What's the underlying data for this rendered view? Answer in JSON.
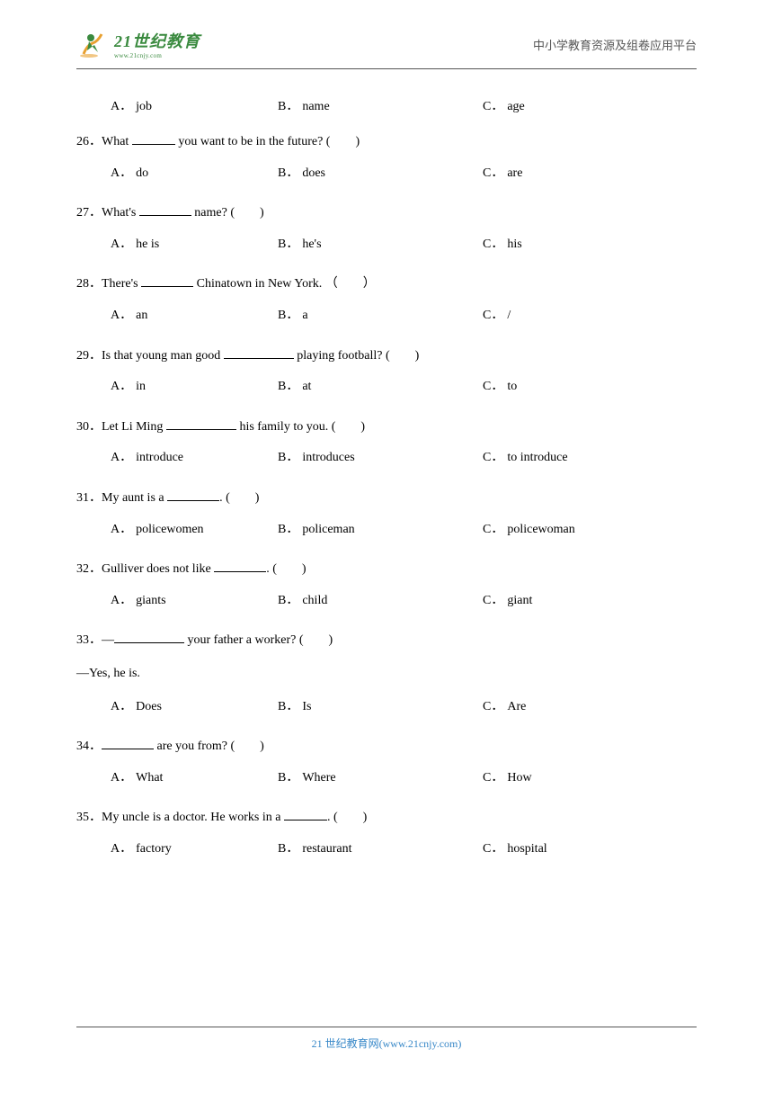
{
  "header": {
    "logo_main": "21世纪教育",
    "logo_sub": "www.21cnjy.com",
    "right_text": "中小学教育资源及组卷应用平台"
  },
  "first_options": {
    "a": "job",
    "b": "name",
    "c": "age"
  },
  "questions": [
    {
      "num": "26",
      "before": "．What ",
      "blank_class": "blank-sm",
      "after": " you want to be in the future? (　　)",
      "a": "do",
      "b": "does",
      "c": "are"
    },
    {
      "num": "27",
      "before": "．What's ",
      "blank_class": "blank-md",
      "after": " name? (　　)",
      "a": "he is",
      "b": "he's",
      "c": "his"
    },
    {
      "num": "28",
      "before": "．There's ",
      "blank_class": "blank-md",
      "after": " Chinatown in New York. （　　）",
      "a": "an",
      "b": "a",
      "c": "/"
    },
    {
      "num": "29",
      "before": "．Is that young man good ",
      "blank_class": "blank-lg",
      "after": " playing football? (　　)",
      "a": "in",
      "b": "at",
      "c": "to"
    },
    {
      "num": "30",
      "before": "．Let Li Ming ",
      "blank_class": "blank-lg",
      "after": " his family to you. (　　)",
      "a": "introduce",
      "b": "introduces",
      "c": "to introduce"
    },
    {
      "num": "31",
      "before": "．My aunt is a ",
      "blank_class": "blank-md",
      "after": ". (　　)",
      "a": "policewomen",
      "b": "policeman",
      "c": "policewoman"
    },
    {
      "num": "32",
      "before": "．Gulliver does not like ",
      "blank_class": "blank-md",
      "after": ". (　　)",
      "a": "giants",
      "b": "child",
      "c": "giant"
    },
    {
      "num": "33",
      "before": "．—",
      "blank_class": "blank-lg",
      "after": " your father a worker? (　　)",
      "followup": "—Yes, he is.",
      "a": "Does",
      "b": "Is",
      "c": "Are"
    },
    {
      "num": "34",
      "before": "．",
      "blank_class": "blank-md",
      "after": " are you from? (　　)",
      "a": "What",
      "b": "Where",
      "c": "How"
    },
    {
      "num": "35",
      "before": "．My uncle is a doctor. He works in a ",
      "blank_class": "blank-sm",
      "after": ". (　　)",
      "a": "factory",
      "b": "restaurant",
      "c": "hospital"
    }
  ],
  "footer": "21 世纪教育网(www.21cnjy.com)"
}
